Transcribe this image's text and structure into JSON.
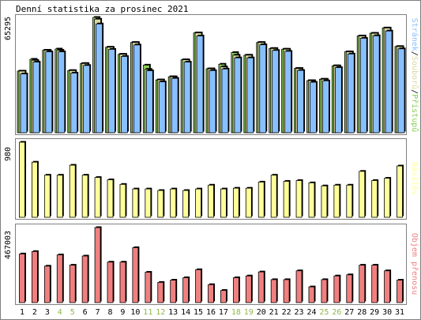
{
  "chart_data": {
    "type": "bar",
    "title": "Denní statistika za prosinec 2021",
    "categories": [
      "1",
      "2",
      "3",
      "4",
      "5",
      "6",
      "7",
      "8",
      "9",
      "10",
      "11",
      "12",
      "13",
      "14",
      "15",
      "16",
      "17",
      "18",
      "19",
      "20",
      "21",
      "22",
      "23",
      "24",
      "25",
      "26",
      "27",
      "28",
      "29",
      "30",
      "31"
    ],
    "weekend_days": [
      "4",
      "5",
      "11",
      "12",
      "18",
      "19",
      "25",
      "26"
    ],
    "panels": [
      {
        "id": "hits",
        "ymax_label": "65295",
        "legend": [
          "Stránek",
          "Souborů",
          "Přístupů"
        ],
        "legend_separator": "/",
        "series": [
          {
            "name": "Přístupů",
            "color": "#88cc55",
            "values": [
              34900,
              41600,
              46700,
              47400,
              35200,
              39200,
              65300,
              48400,
              44400,
              51100,
              38300,
              29900,
              31700,
              41300,
              56500,
              36200,
              38800,
              45400,
              43900,
              51100,
              47700,
              47300,
              36400,
              29500,
              30300,
              37900,
              45800,
              54800,
              56300,
              59300,
              48800
            ]
          },
          {
            "name": "Souborů",
            "color": "#d9d9a3",
            "values": [
              34900,
              41000,
              46700,
              46700,
              35200,
              39200,
              64300,
              48400,
              44400,
              51100,
              35900,
              29900,
              31700,
              41300,
              56500,
              36200,
              37300,
              43900,
              43900,
              51100,
              47700,
              47300,
              36400,
              29500,
              30300,
              37900,
              45800,
              54800,
              56300,
              59300,
              48800
            ]
          },
          {
            "name": "Stránek",
            "color": "#88c0ff",
            "values": [
              33300,
              40000,
              45800,
              45800,
              33800,
              38100,
              61600,
              47200,
              43200,
              49700,
              35100,
              28800,
              30800,
              40000,
              54800,
              35200,
              36100,
              42400,
              42400,
              49800,
              46600,
              46100,
              35300,
              28600,
              29400,
              36900,
              44600,
              53500,
              54900,
              57600,
              47500
            ]
          }
        ]
      },
      {
        "id": "visits",
        "ymax_label": "980",
        "legend": [
          "Návštěv"
        ],
        "series": [
          {
            "name": "Návštěv",
            "color": "#ffff99",
            "values": [
              980,
              720,
              550,
              550,
              680,
              550,
              520,
              490,
              430,
              370,
              370,
              350,
              370,
              350,
              370,
              420,
              370,
              380,
              380,
              460,
              550,
              470,
              480,
              450,
              410,
              420,
              420,
              600,
              480,
              510,
              670
            ]
          }
        ]
      },
      {
        "id": "traffic",
        "ymax_label": "467003",
        "legend": [
          "Objem přenosu"
        ],
        "series": [
          {
            "name": "Objem přenosu",
            "color": "#f08080",
            "values": [
              303000,
              318000,
              227000,
              297000,
              233000,
              290000,
              467003,
              252000,
              252000,
              342000,
              189000,
              126000,
              140000,
              155000,
              205000,
              112000,
              76000,
              155000,
              166000,
              191000,
              143000,
              143000,
              198000,
              98000,
              143000,
              166000,
              173000,
              233000,
              233000,
              198000,
              140000
            ]
          }
        ]
      }
    ]
  },
  "colors": {
    "frame": "#808080",
    "axis": "#000000",
    "weekend_label": "#8fb84a",
    "weekday_label": "#000000",
    "shadow": "#000000"
  }
}
